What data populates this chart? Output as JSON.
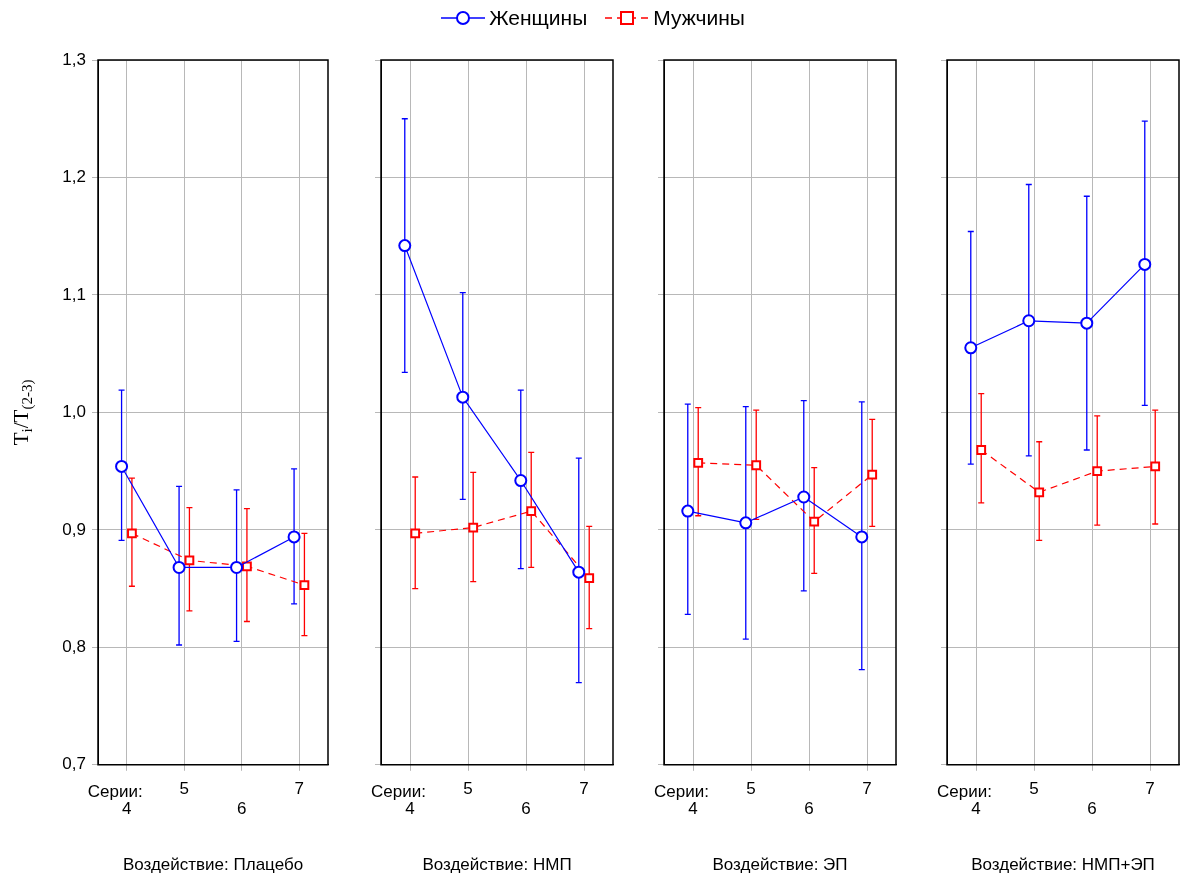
{
  "chart_data": [
    {
      "type": "line",
      "xlabel": "Воздействие: Плацебо",
      "ylabel": "T$_{i}$/T$_{(2-3)}$",
      "annotations": [
        "Серии:"
      ],
      "categories": [
        "4",
        "5",
        "6",
        "7"
      ],
      "ylim": [
        0.7,
        1.3
      ],
      "yticks": [
        {
          "value": 0.7,
          "label": "0,7"
        },
        {
          "value": 0.8,
          "label": "0,8"
        },
        {
          "value": 0.9,
          "label": "0,9"
        },
        {
          "value": 1.0,
          "label": "1,0"
        },
        {
          "value": 1.1,
          "label": "1,1"
        },
        {
          "value": 1.2,
          "label": "1,2"
        },
        {
          "value": 1.3,
          "label": "1,3"
        }
      ],
      "grid": true,
      "legend": "top",
      "series": [
        {
          "name": "Женщины",
          "color": "#0000ff",
          "marker": "circle",
          "line_style": "solid",
          "values": [
            0.954,
            0.868,
            0.868,
            0.894
          ],
          "errors": [
            [
              0.891,
              1.019
            ],
            [
              0.802,
              0.937
            ],
            [
              0.805,
              0.934
            ],
            [
              0.837,
              0.952
            ]
          ]
        },
        {
          "name": "Мужчины",
          "color": "#ff0000",
          "marker": "square",
          "line_style": "dashed",
          "values": [
            0.897,
            0.874,
            0.869,
            0.853
          ],
          "errors": [
            [
              0.852,
              0.944
            ],
            [
              0.831,
              0.919
            ],
            [
              0.822,
              0.918
            ],
            [
              0.81,
              0.897
            ]
          ]
        }
      ]
    },
    {
      "type": "line",
      "xlabel": "Воздействие: НМП",
      "annotations": [
        "Серии:"
      ],
      "categories": [
        "4",
        "5",
        "6",
        "7"
      ],
      "ylim": [
        0.7,
        1.3
      ],
      "yticks": [
        0.7,
        0.8,
        0.9,
        1.0,
        1.1,
        1.2,
        1.3
      ],
      "grid": true,
      "tick_labels": "x",
      "series": [
        {
          "color": "#0000ff",
          "marker": "circle",
          "line_style": "solid",
          "values": [
            1.142,
            1.013,
            0.942,
            0.864
          ],
          "errors": [
            [
              1.034,
              1.25
            ],
            [
              0.926,
              1.102
            ],
            [
              0.867,
              1.019
            ],
            [
              0.77,
              0.961
            ]
          ]
        },
        {
          "color": "#ff0000",
          "marker": "square",
          "line_style": "dashed",
          "values": [
            0.897,
            0.902,
            0.916,
            0.859
          ],
          "errors": [
            [
              0.85,
              0.945
            ],
            [
              0.856,
              0.949
            ],
            [
              0.868,
              0.966
            ],
            [
              0.816,
              0.903
            ]
          ]
        }
      ]
    },
    {
      "type": "line",
      "xlabel": "Воздействие: ЭП",
      "annotations": [
        "Серии:"
      ],
      "categories": [
        "4",
        "5",
        "6",
        "7"
      ],
      "ylim": [
        0.7,
        1.3
      ],
      "yticks": [
        0.7,
        0.8,
        0.9,
        1.0,
        1.1,
        1.2,
        1.3
      ],
      "grid": true,
      "tick_labels": "x",
      "series": [
        {
          "color": "#0000ff",
          "marker": "circle",
          "line_style": "solid",
          "values": [
            0.916,
            0.906,
            0.928,
            0.894
          ],
          "errors": [
            [
              0.828,
              1.007
            ],
            [
              0.807,
              1.005
            ],
            [
              0.848,
              1.01
            ],
            [
              0.781,
              1.009
            ]
          ]
        },
        {
          "color": "#ff0000",
          "marker": "square",
          "line_style": "dashed",
          "values": [
            0.957,
            0.955,
            0.907,
            0.947
          ],
          "errors": [
            [
              0.912,
              1.004
            ],
            [
              0.909,
              1.002
            ],
            [
              0.863,
              0.953
            ],
            [
              0.903,
              0.994
            ]
          ]
        }
      ]
    },
    {
      "type": "line",
      "xlabel": "Воздействие: НМП+ЭП",
      "annotations": [
        "Серии:"
      ],
      "categories": [
        "4",
        "5",
        "6",
        "7"
      ],
      "ylim": [
        0.7,
        1.3
      ],
      "yticks": [
        0.7,
        0.8,
        0.9,
        1.0,
        1.1,
        1.2,
        1.3
      ],
      "grid": true,
      "tick_labels": "x",
      "series": [
        {
          "color": "#0000ff",
          "marker": "circle",
          "line_style": "solid",
          "values": [
            1.055,
            1.078,
            1.076,
            1.126
          ],
          "errors": [
            [
              0.956,
              1.154
            ],
            [
              0.963,
              1.194
            ],
            [
              0.968,
              1.184
            ],
            [
              1.006,
              1.248
            ]
          ]
        },
        {
          "color": "#ff0000",
          "marker": "square",
          "line_style": "dashed",
          "values": [
            0.968,
            0.932,
            0.95,
            0.954
          ],
          "errors": [
            [
              0.923,
              1.016
            ],
            [
              0.891,
              0.975
            ],
            [
              0.904,
              0.997
            ],
            [
              0.905,
              1.002
            ]
          ]
        }
      ]
    }
  ]
}
